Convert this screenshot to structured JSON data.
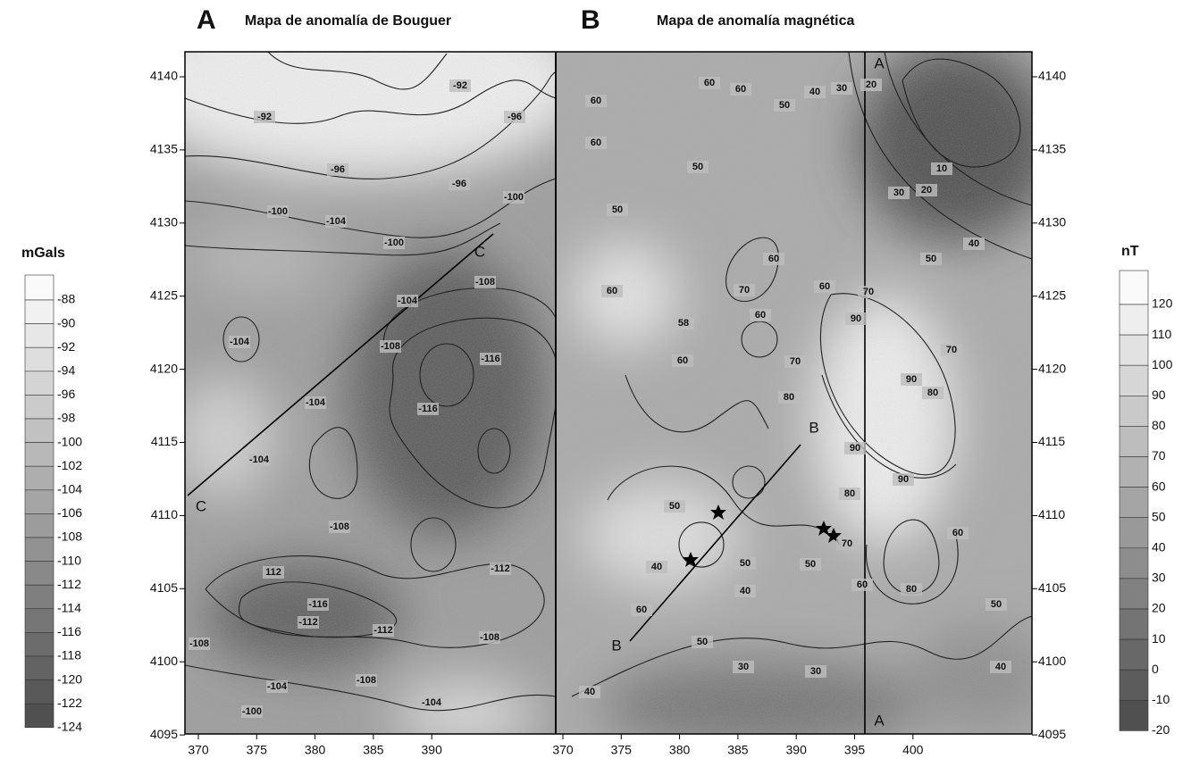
{
  "panel_a": {
    "letter": "A",
    "title": "Mapa de anomalía de Bouguer",
    "xticks": [
      370,
      375,
      380,
      385,
      390
    ],
    "yticks": [
      4140,
      4135,
      4130,
      4125,
      4120,
      4115,
      4110,
      4105,
      4100,
      4095
    ],
    "contour_labels": [
      "-92",
      "-92",
      "-96",
      "-96",
      "-96",
      "-100",
      "-100",
      "-100",
      "-104",
      "-104",
      "-104",
      "-104",
      "-104",
      "-108",
      "-108",
      "-108",
      "-116",
      "-116",
      "112",
      "-112",
      "-112",
      "-112",
      "-116",
      "-108",
      "-108",
      "-108",
      "-104",
      "-104",
      "-100"
    ],
    "profile_labels": [
      "C",
      "C"
    ]
  },
  "panel_b": {
    "letter": "B",
    "title": "Mapa de anomalía magnética",
    "xticks": [
      370,
      375,
      380,
      385,
      390,
      395,
      400
    ],
    "yticks": [
      4140,
      4135,
      4130,
      4125,
      4120,
      4115,
      4110,
      4105,
      4100,
      4095
    ],
    "contour_labels": [
      "60",
      "60",
      "60",
      "60",
      "50",
      "40",
      "30",
      "20",
      "50",
      "50",
      "60",
      "60",
      "70",
      "60",
      "58",
      "60",
      "70",
      "80",
      "60",
      "70",
      "90",
      "90",
      "80",
      "70",
      "10",
      "20",
      "30",
      "40",
      "50",
      "90",
      "80",
      "90",
      "50",
      "40",
      "60",
      "50",
      "50",
      "40",
      "30",
      "30",
      "40",
      "60",
      "70",
      "50",
      "80",
      "60",
      "50",
      "40"
    ],
    "profile_labels": [
      "B",
      "B",
      "A",
      "A"
    ]
  },
  "legend_a": {
    "unit": "mGals",
    "labels": [
      -88,
      -90,
      -92,
      -94,
      -96,
      -98,
      -100,
      -102,
      -104,
      -106,
      -108,
      -110,
      -112,
      -114,
      -116,
      -118,
      -120,
      -122,
      -124
    ]
  },
  "legend_b": {
    "unit": "nT",
    "labels": [
      120,
      110,
      100,
      90,
      80,
      70,
      60,
      50,
      40,
      30,
      20,
      10,
      0,
      -10,
      -20
    ]
  }
}
